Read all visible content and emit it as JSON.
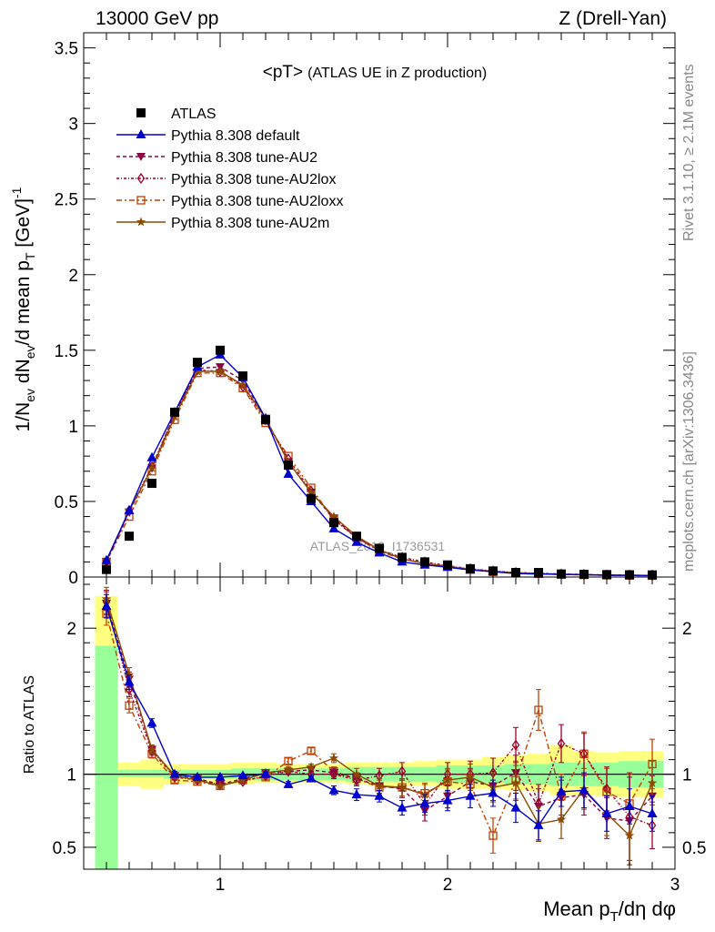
{
  "header": {
    "left": "13000 GeV pp",
    "right": "Z (Drell-Yan)"
  },
  "side_labels": {
    "rivet": "Rivet 3.1.10, ≥ 2.1M events",
    "mcplots": "mcplots.cern.ch [arXiv:1306.3436]"
  },
  "watermark": "ATLAS_2019_I1736531",
  "chart_data": [
    {
      "type": "line",
      "title_main": "<pT>",
      "title_sub": "(ATLAS UE in Z production)",
      "ylabel": "1/N_ev dN_ev/d mean p_T [GeV]^-1",
      "xlabel": "Mean p_T/dη dφ",
      "xlim": [
        0.4,
        3.0
      ],
      "ylim": [
        0,
        3.6
      ],
      "yticks": [
        "0",
        "0.5",
        "1",
        "1.5",
        "2",
        "2.5",
        "3",
        "3.5"
      ],
      "xticks": [
        "1",
        "2",
        "3"
      ],
      "x": [
        0.5,
        0.6,
        0.7,
        0.8,
        0.9,
        1.0,
        1.1,
        1.2,
        1.3,
        1.4,
        1.5,
        1.6,
        1.7,
        1.8,
        1.9,
        2.0,
        2.1,
        2.2,
        2.3,
        2.4,
        2.5,
        2.6,
        2.7,
        2.8,
        2.9
      ],
      "legend": [
        {
          "key": "atlas",
          "label": "ATLAS",
          "color": "#000000",
          "marker": "square-filled",
          "dash": ""
        },
        {
          "key": "default",
          "label": "Pythia 8.308 default",
          "color": "#0000cc",
          "marker": "triangle-filled",
          "dash": ""
        },
        {
          "key": "au2",
          "label": "Pythia 8.308 tune-AU2",
          "color": "#8b0045",
          "marker": "triangle-down-filled",
          "dash": "4,3"
        },
        {
          "key": "au2lox",
          "label": "Pythia 8.308 tune-AU2lox",
          "color": "#a0002a",
          "marker": "diamond-open",
          "dash": "3,2,1,2"
        },
        {
          "key": "au2loxx",
          "label": "Pythia 8.308 tune-AU2loxx",
          "color": "#c04000",
          "marker": "square-open",
          "dash": "6,3,2,3"
        },
        {
          "key": "au2m",
          "label": "Pythia 8.308 tune-AU2m",
          "color": "#8b4a00",
          "marker": "star",
          "dash": ""
        }
      ],
      "series": [
        {
          "key": "atlas",
          "values": [
            0.05,
            0.27,
            0.62,
            1.09,
            1.42,
            1.5,
            1.33,
            1.04,
            0.74,
            0.52,
            0.36,
            0.27,
            0.19,
            0.13,
            0.1,
            0.08,
            0.055,
            0.04,
            0.03,
            0.03,
            0.02,
            0.018,
            0.016,
            0.015,
            0.014
          ]
        },
        {
          "key": "default",
          "values": [
            0.11,
            0.44,
            0.79,
            1.09,
            1.39,
            1.47,
            1.32,
            1.05,
            0.68,
            0.5,
            0.32,
            0.23,
            0.16,
            0.1,
            0.08,
            0.065,
            0.047,
            0.035,
            0.023,
            0.02,
            0.018,
            0.016,
            0.012,
            0.012,
            0.01
          ]
        },
        {
          "key": "au2",
          "values": [
            0.1,
            0.43,
            0.72,
            1.08,
            1.38,
            1.39,
            1.3,
            1.05,
            0.76,
            0.56,
            0.39,
            0.26,
            0.18,
            0.12,
            0.09,
            0.07,
            0.052,
            0.038,
            0.028,
            0.022,
            0.018,
            0.014,
            0.012,
            0.01,
            0.009
          ]
        },
        {
          "key": "au2lox",
          "values": [
            0.1,
            0.44,
            0.73,
            1.08,
            1.37,
            1.36,
            1.26,
            1.04,
            0.78,
            0.57,
            0.38,
            0.26,
            0.18,
            0.13,
            0.1,
            0.075,
            0.055,
            0.04,
            0.03,
            0.025,
            0.02,
            0.017,
            0.014,
            0.012,
            0.01
          ]
        },
        {
          "key": "au2loxx",
          "values": [
            0.1,
            0.4,
            0.7,
            1.04,
            1.35,
            1.35,
            1.25,
            1.02,
            0.8,
            0.59,
            0.38,
            0.26,
            0.17,
            0.12,
            0.09,
            0.07,
            0.05,
            0.035,
            0.027,
            0.022,
            0.017,
            0.014,
            0.012,
            0.01,
            0.009
          ]
        },
        {
          "key": "au2m",
          "values": [
            0.11,
            0.44,
            0.72,
            1.06,
            1.36,
            1.36,
            1.27,
            1.05,
            0.76,
            0.56,
            0.4,
            0.27,
            0.18,
            0.12,
            0.09,
            0.07,
            0.05,
            0.037,
            0.028,
            0.022,
            0.018,
            0.015,
            0.012,
            0.01,
            0.009
          ]
        }
      ]
    },
    {
      "type": "line",
      "ylabel": "Ratio to ATLAS",
      "xlim": [
        0.4,
        3.0
      ],
      "ylim": [
        0.35,
        2.35
      ],
      "yticks": [
        "0.5",
        "1",
        "2"
      ],
      "yticks_right": [
        "0.5",
        "1",
        "2"
      ],
      "band_inner": {
        "color": "#99ff99",
        "lo": [
          0.0,
          0.98,
          0.98,
          0.97,
          0.97,
          0.97,
          0.97,
          0.96,
          0.96,
          0.96,
          0.96,
          0.95,
          0.95,
          0.95,
          0.95,
          0.94,
          0.94,
          0.94,
          0.93,
          0.93,
          0.92,
          0.92,
          0.92,
          0.91,
          0.91
        ],
        "hi": [
          1.88,
          1.03,
          1.03,
          1.03,
          1.03,
          1.03,
          1.04,
          1.04,
          1.04,
          1.04,
          1.04,
          1.05,
          1.05,
          1.05,
          1.05,
          1.06,
          1.06,
          1.06,
          1.07,
          1.07,
          1.08,
          1.08,
          1.08,
          1.09,
          1.09
        ]
      },
      "band_outer": {
        "color": "#ffff80",
        "lo": [
          0.0,
          0.92,
          0.9,
          0.93,
          0.94,
          0.93,
          0.93,
          0.94,
          0.94,
          0.94,
          0.94,
          0.93,
          0.92,
          0.92,
          0.92,
          0.9,
          0.9,
          0.9,
          0.89,
          0.88,
          0.86,
          0.86,
          0.85,
          0.84,
          0.84
        ],
        "hi": [
          2.22,
          1.08,
          1.1,
          1.07,
          1.07,
          1.07,
          1.08,
          1.08,
          1.07,
          1.07,
          1.07,
          1.08,
          1.08,
          1.08,
          1.09,
          1.1,
          1.1,
          1.12,
          1.13,
          1.14,
          1.2,
          1.16,
          1.15,
          1.16,
          1.16
        ]
      },
      "series": [
        {
          "key": "default",
          "values": [
            2.15,
            1.63,
            1.35,
            1.0,
            0.98,
            0.98,
            0.99,
            1.0,
            0.93,
            0.97,
            0.89,
            0.86,
            0.85,
            0.77,
            0.8,
            0.82,
            0.85,
            0.87,
            0.77,
            0.65,
            0.88,
            0.89,
            0.73,
            0.78,
            0.73
          ],
          "err": [
            0.08,
            0.05,
            0.03,
            0.02,
            0.01,
            0.01,
            0.01,
            0.015,
            0.02,
            0.02,
            0.03,
            0.04,
            0.04,
            0.05,
            0.06,
            0.07,
            0.08,
            0.09,
            0.1,
            0.1,
            0.1,
            0.12,
            0.12,
            0.12,
            0.12
          ]
        },
        {
          "key": "au2",
          "values": [
            2.17,
            1.65,
            1.17,
            0.99,
            0.97,
            0.93,
            0.97,
            1.01,
            1.02,
            1.03,
            1.01,
            0.97,
            0.92,
            0.9,
            0.75,
            0.85,
            0.95,
            0.92,
            1.01,
            0.78,
            0.84,
            0.86,
            0.7,
            0.68,
            0.85
          ],
          "err": [
            0.08,
            0.05,
            0.03,
            0.02,
            0.01,
            0.01,
            0.01,
            0.015,
            0.02,
            0.02,
            0.03,
            0.04,
            0.05,
            0.06,
            0.07,
            0.08,
            0.09,
            0.1,
            0.12,
            0.12,
            0.12,
            0.14,
            0.14,
            0.3,
            0.14
          ]
        },
        {
          "key": "au2lox",
          "values": [
            2.18,
            1.58,
            1.16,
            0.98,
            0.96,
            0.93,
            0.95,
            0.99,
            1.02,
            1.0,
            1.0,
            0.96,
            0.99,
            1.02,
            0.79,
            1.0,
            1.0,
            1.01,
            1.2,
            0.8,
            1.21,
            1.14,
            0.9,
            0.71,
            0.65
          ],
          "err": [
            0.08,
            0.05,
            0.03,
            0.02,
            0.01,
            0.01,
            0.01,
            0.015,
            0.02,
            0.02,
            0.03,
            0.04,
            0.05,
            0.06,
            0.07,
            0.08,
            0.09,
            0.1,
            0.12,
            0.13,
            0.13,
            0.14,
            0.15,
            0.3,
            0.16
          ]
        },
        {
          "key": "au2loxx",
          "values": [
            2.1,
            1.47,
            1.14,
            0.96,
            0.95,
            0.92,
            0.96,
            0.98,
            1.09,
            1.16,
            1.02,
            0.97,
            0.91,
            0.91,
            0.87,
            0.95,
            0.93,
            0.58,
            0.96,
            1.44,
            0.85,
            1.14,
            0.88,
            0.8,
            1.07
          ],
          "err": [
            0.08,
            0.05,
            0.03,
            0.02,
            0.01,
            0.01,
            0.01,
            0.015,
            0.02,
            0.02,
            0.03,
            0.04,
            0.05,
            0.06,
            0.07,
            0.08,
            0.1,
            0.12,
            0.13,
            0.14,
            0.15,
            0.15,
            0.16,
            0.2,
            0.17
          ]
        },
        {
          "key": "au2m",
          "values": [
            2.2,
            1.68,
            1.17,
            0.99,
            0.96,
            0.92,
            0.96,
            1.01,
            1.03,
            1.05,
            1.11,
            1.0,
            0.92,
            0.91,
            0.86,
            0.96,
            0.98,
            0.91,
            0.94,
            0.66,
            0.69,
            0.9,
            0.73,
            0.58,
            0.94
          ],
          "err": [
            0.08,
            0.05,
            0.03,
            0.02,
            0.01,
            0.01,
            0.01,
            0.015,
            0.02,
            0.02,
            0.03,
            0.04,
            0.05,
            0.06,
            0.07,
            0.08,
            0.09,
            0.1,
            0.12,
            0.12,
            0.13,
            0.14,
            0.15,
            0.2,
            0.15
          ]
        }
      ]
    }
  ]
}
